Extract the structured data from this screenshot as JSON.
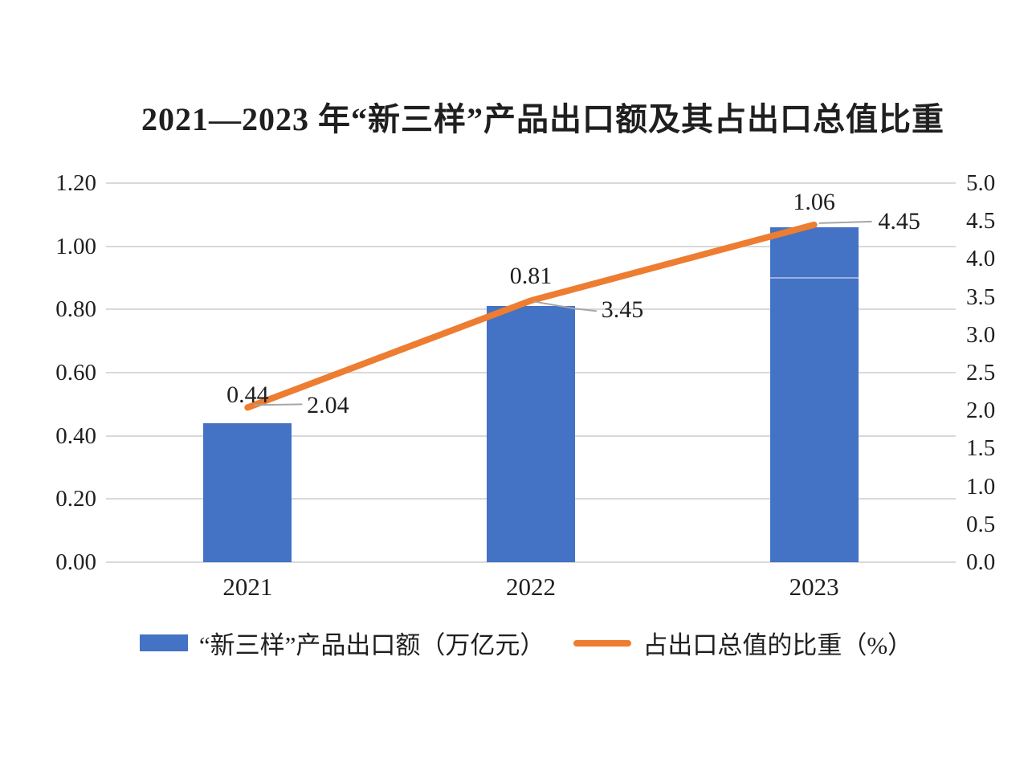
{
  "chart_data": {
    "type": "bar",
    "title": "2021—2023 年“新三样”产品出口额及其占出口总值比重",
    "categories": [
      "2021",
      "2022",
      "2023"
    ],
    "series": [
      {
        "name": "“新三样”产品出口额（万亿元）",
        "type": "bar",
        "axis": "left",
        "color": "#4472c4",
        "values": [
          0.44,
          0.81,
          1.06
        ],
        "labels": [
          "0.44",
          "0.81",
          "1.06"
        ]
      },
      {
        "name": "占出口总值的比重（%）",
        "type": "line",
        "axis": "right",
        "color": "#ed7d31",
        "values": [
          2.04,
          3.45,
          4.45
        ],
        "labels": [
          "2.04",
          "3.45",
          "4.45"
        ]
      }
    ],
    "left_axis": {
      "min": 0.0,
      "max": 1.2,
      "tick_labels": [
        "1.20",
        "1.00",
        "0.80",
        "0.60",
        "0.40",
        "0.20",
        "0.00"
      ]
    },
    "right_axis": {
      "min": 0.0,
      "max": 5.0,
      "tick_labels": [
        "5.0",
        "4.5",
        "4.0",
        "3.5",
        "3.0",
        "2.5",
        "2.0",
        "1.5",
        "1.0",
        "0.5",
        "0.0"
      ]
    },
    "grid": true,
    "legend_position": "bottom",
    "colors": {
      "grid": "#d9d9d9",
      "leader": "#a6a6a6",
      "text": "#1f1f1f",
      "background": "#ffffff"
    }
  }
}
